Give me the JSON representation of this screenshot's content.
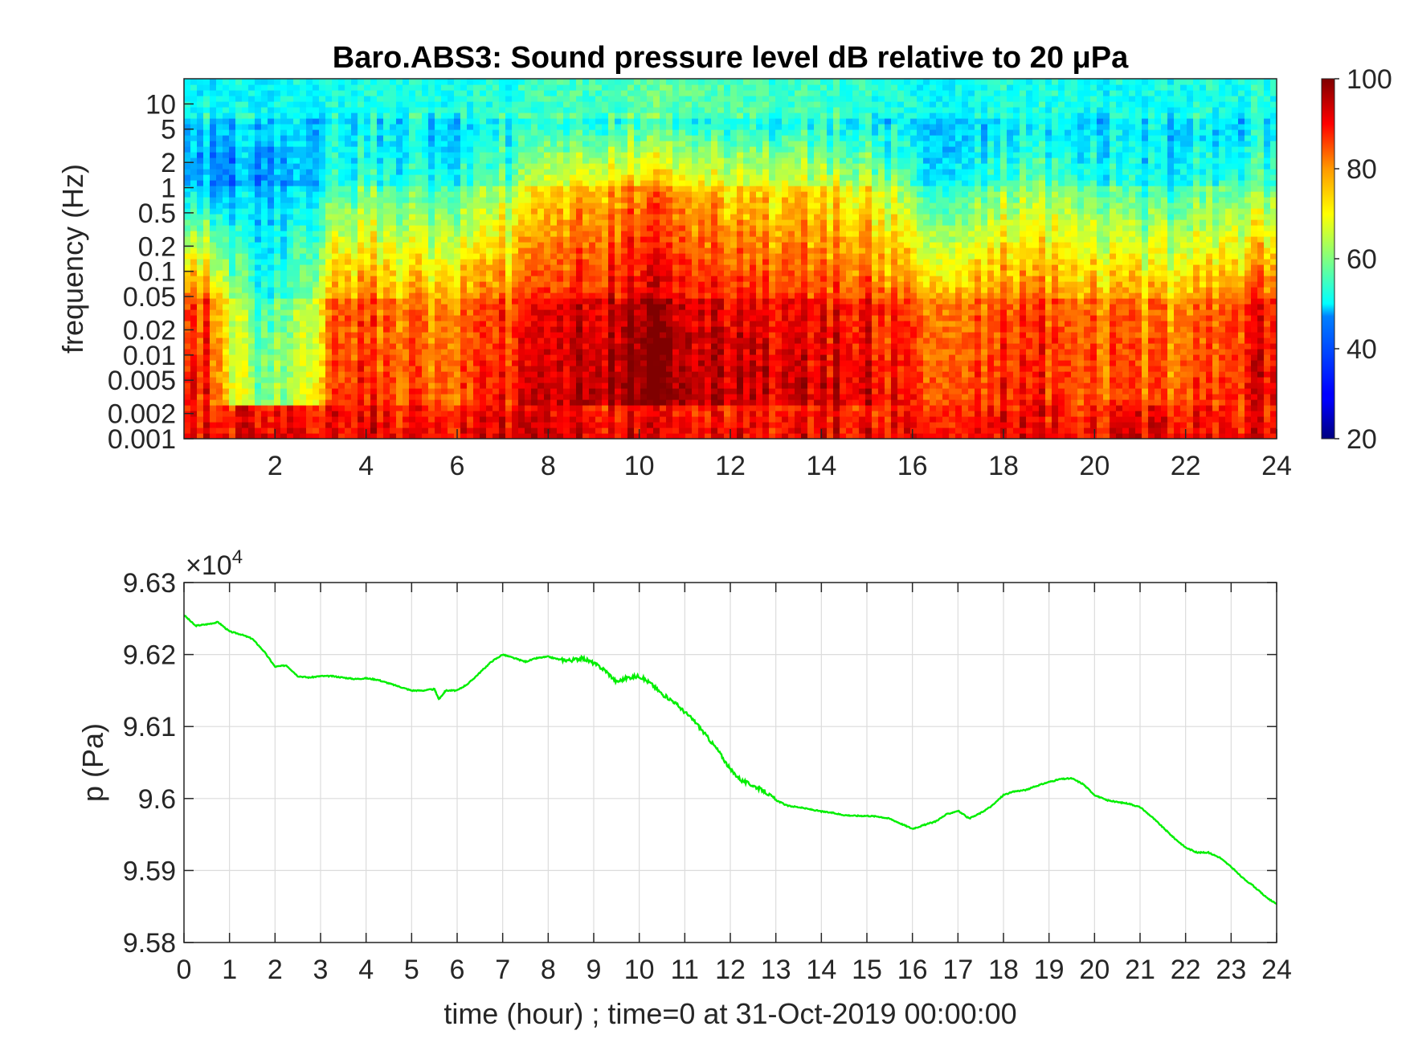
{
  "chart_data": [
    {
      "type": "heatmap",
      "title": "Baro.ABS3: Sound pressure level dB relative to 20 μPa",
      "xlabel": "",
      "ylabel": "frequency (Hz)",
      "xlim": [
        0,
        24
      ],
      "x_ticks": [
        2,
        4,
        6,
        8,
        10,
        12,
        14,
        16,
        18,
        20,
        22,
        24
      ],
      "y_scale": "log",
      "ylim": [
        0.001,
        20
      ],
      "y_ticks": [
        0.001,
        0.002,
        0.005,
        0.01,
        0.02,
        0.05,
        0.1,
        0.2,
        0.5,
        1,
        2,
        5,
        10
      ],
      "y_tick_labels": [
        "0.001",
        "0.002",
        "0.005",
        "0.01",
        "0.02",
        "0.05",
        "0.1",
        "0.2",
        "0.5",
        "1",
        "2",
        "5",
        "10"
      ],
      "colormap": "jet",
      "colorbar": {
        "range": [
          20,
          100
        ],
        "ticks": [
          20,
          40,
          60,
          80,
          100
        ]
      },
      "grid": false,
      "z_summary": {
        "x_hours": [
          0.5,
          1.5,
          2.3,
          3.5,
          5,
          6.5,
          8,
          9.5,
          10.5,
          12,
          13.5,
          15,
          16.5,
          18,
          19.5,
          21,
          22.5,
          23.8
        ],
        "level_db_at_0_05Hz": [
          80,
          52,
          52,
          80,
          76,
          78,
          84,
          90,
          92,
          88,
          86,
          85,
          78,
          80,
          80,
          74,
          78,
          84
        ],
        "level_db_at_1Hz": [
          46,
          44,
          44,
          58,
          56,
          58,
          70,
          78,
          80,
          74,
          72,
          70,
          54,
          60,
          62,
          52,
          58,
          60
        ],
        "level_db_at_10Hz": [
          50,
          50,
          50,
          52,
          52,
          52,
          54,
          56,
          58,
          56,
          55,
          54,
          50,
          52,
          52,
          50,
          52,
          52
        ]
      }
    },
    {
      "type": "line",
      "title": "",
      "xlabel": "time (hour) ; time=0 at 31-Oct-2019 00:00:00",
      "ylabel": "p (Pa)",
      "y_exponent_label": "×10",
      "y_exponent": "4",
      "xlim": [
        0,
        24
      ],
      "ylim": [
        95800,
        96300
      ],
      "x_ticks": [
        0,
        1,
        2,
        3,
        4,
        5,
        6,
        7,
        8,
        9,
        10,
        11,
        12,
        13,
        14,
        15,
        16,
        17,
        18,
        19,
        20,
        21,
        22,
        23,
        24
      ],
      "y_ticks": [
        95800,
        95900,
        96000,
        96100,
        96200,
        96300
      ],
      "y_tick_labels": [
        "9.58",
        "9.59",
        "9.6",
        "9.61",
        "9.62",
        "9.63"
      ],
      "grid": true,
      "color": "#00ee00",
      "series": [
        {
          "x": [
            0,
            0.25,
            0.5,
            0.75,
            1.0,
            1.25,
            1.5,
            1.75,
            2.0,
            2.25,
            2.5,
            2.75,
            3.0,
            3.25,
            3.5,
            3.75,
            4.0,
            4.25,
            4.5,
            4.75,
            5.0,
            5.25,
            5.5,
            5.6,
            5.75,
            6.0,
            6.25,
            6.5,
            6.75,
            7.0,
            7.25,
            7.5,
            7.75,
            8.0,
            8.25,
            8.5,
            8.75,
            9.0,
            9.25,
            9.5,
            9.75,
            10.0,
            10.25,
            10.5,
            10.75,
            11.0,
            11.25,
            11.5,
            11.75,
            12.0,
            12.25,
            12.5,
            12.75,
            13.0,
            13.25,
            13.5,
            13.75,
            14.0,
            14.25,
            14.5,
            14.75,
            15.0,
            15.25,
            15.5,
            15.75,
            16.0,
            16.25,
            16.5,
            16.75,
            17.0,
            17.25,
            17.5,
            17.75,
            18.0,
            18.25,
            18.5,
            18.75,
            19.0,
            19.25,
            19.5,
            19.75,
            20.0,
            20.25,
            20.5,
            20.75,
            21.0,
            21.25,
            21.5,
            21.75,
            22.0,
            22.25,
            22.5,
            22.75,
            23.0,
            23.25,
            23.5,
            23.75,
            24.0
          ],
          "values": [
            96255,
            96240,
            96242,
            96245,
            96232,
            96228,
            96222,
            96205,
            96183,
            96185,
            96170,
            96168,
            96170,
            96170,
            96168,
            96166,
            96167,
            96165,
            96160,
            96155,
            96150,
            96150,
            96152,
            96138,
            96150,
            96150,
            96160,
            96175,
            96190,
            96200,
            96195,
            96190,
            96195,
            96197,
            96193,
            96192,
            96195,
            96188,
            96178,
            96162,
            96168,
            96170,
            96160,
            96145,
            96135,
            96120,
            96105,
            96085,
            96065,
            96040,
            96025,
            96018,
            96010,
            95998,
            95990,
            95988,
            95985,
            95982,
            95980,
            95977,
            95976,
            95976,
            95975,
            95972,
            95965,
            95958,
            95963,
            95968,
            95978,
            95983,
            95972,
            95980,
            95990,
            96005,
            96010,
            96012,
            96018,
            96023,
            96027,
            96028,
            96020,
            96005,
            95998,
            95995,
            95993,
            95988,
            95975,
            95960,
            95945,
            95932,
            95925,
            95925,
            95918,
            95905,
            95890,
            95878,
            95864,
            95853
          ]
        }
      ]
    }
  ]
}
